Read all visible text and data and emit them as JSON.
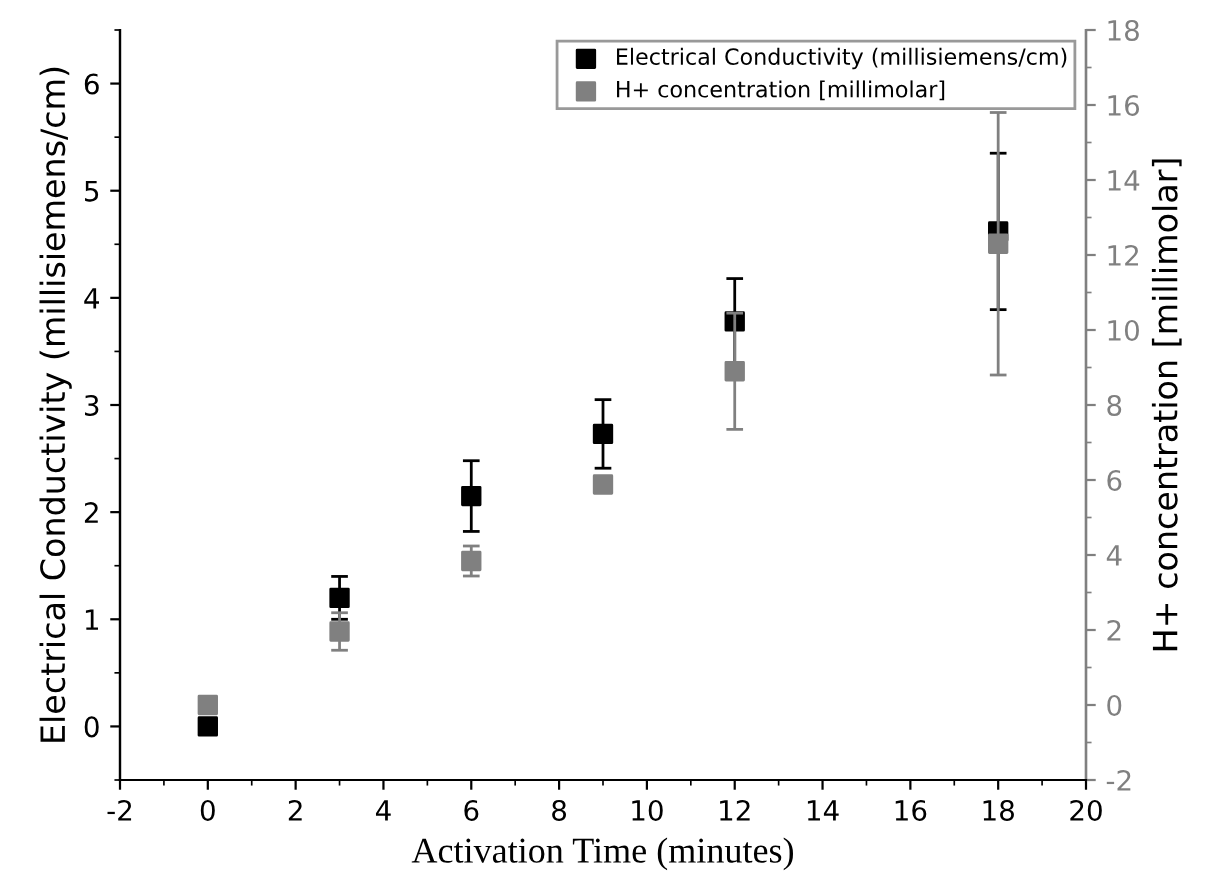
{
  "chart_data": {
    "type": "scatter",
    "xlabel": "Activation Time (minutes)",
    "ylabel": "Electrical Conductivity (millisiemens/cm)",
    "y2label": "H+ concentration [millimolar]",
    "xlim": [
      -2,
      20
    ],
    "xticks": [
      -2,
      0,
      2,
      4,
      6,
      8,
      10,
      12,
      14,
      16,
      18,
      20
    ],
    "ylim": [
      -0.5,
      6.5
    ],
    "yticks": [
      0,
      1,
      2,
      3,
      4,
      5,
      6
    ],
    "y2lim": [
      -2,
      18
    ],
    "y2ticks": [
      -2,
      0,
      2,
      4,
      6,
      8,
      10,
      12,
      14,
      16,
      18
    ],
    "marker": "square",
    "legend": "top right",
    "grid": false,
    "series": [
      {
        "name": "Electrical Conductivity (millisiemens/cm)",
        "color": "#000000",
        "x": [
          0,
          3,
          6,
          9,
          12,
          18
        ],
        "values": [
          0,
          1.2,
          2.15,
          2.73,
          3.78,
          4.62
        ],
        "errors": [
          null,
          0.2,
          0.33,
          0.32,
          0.4,
          0.73
        ]
      },
      {
        "name": "H+ concentration [millimolar]",
        "color": "#808080",
        "axis": "y2",
        "x": [
          0,
          3,
          6,
          9,
          12,
          18
        ],
        "values": [
          0,
          1.96,
          3.84,
          5.88,
          8.9,
          12.3
        ],
        "errors": [
          null,
          0.5,
          0.4,
          0.2,
          1.55,
          3.5
        ]
      }
    ]
  }
}
